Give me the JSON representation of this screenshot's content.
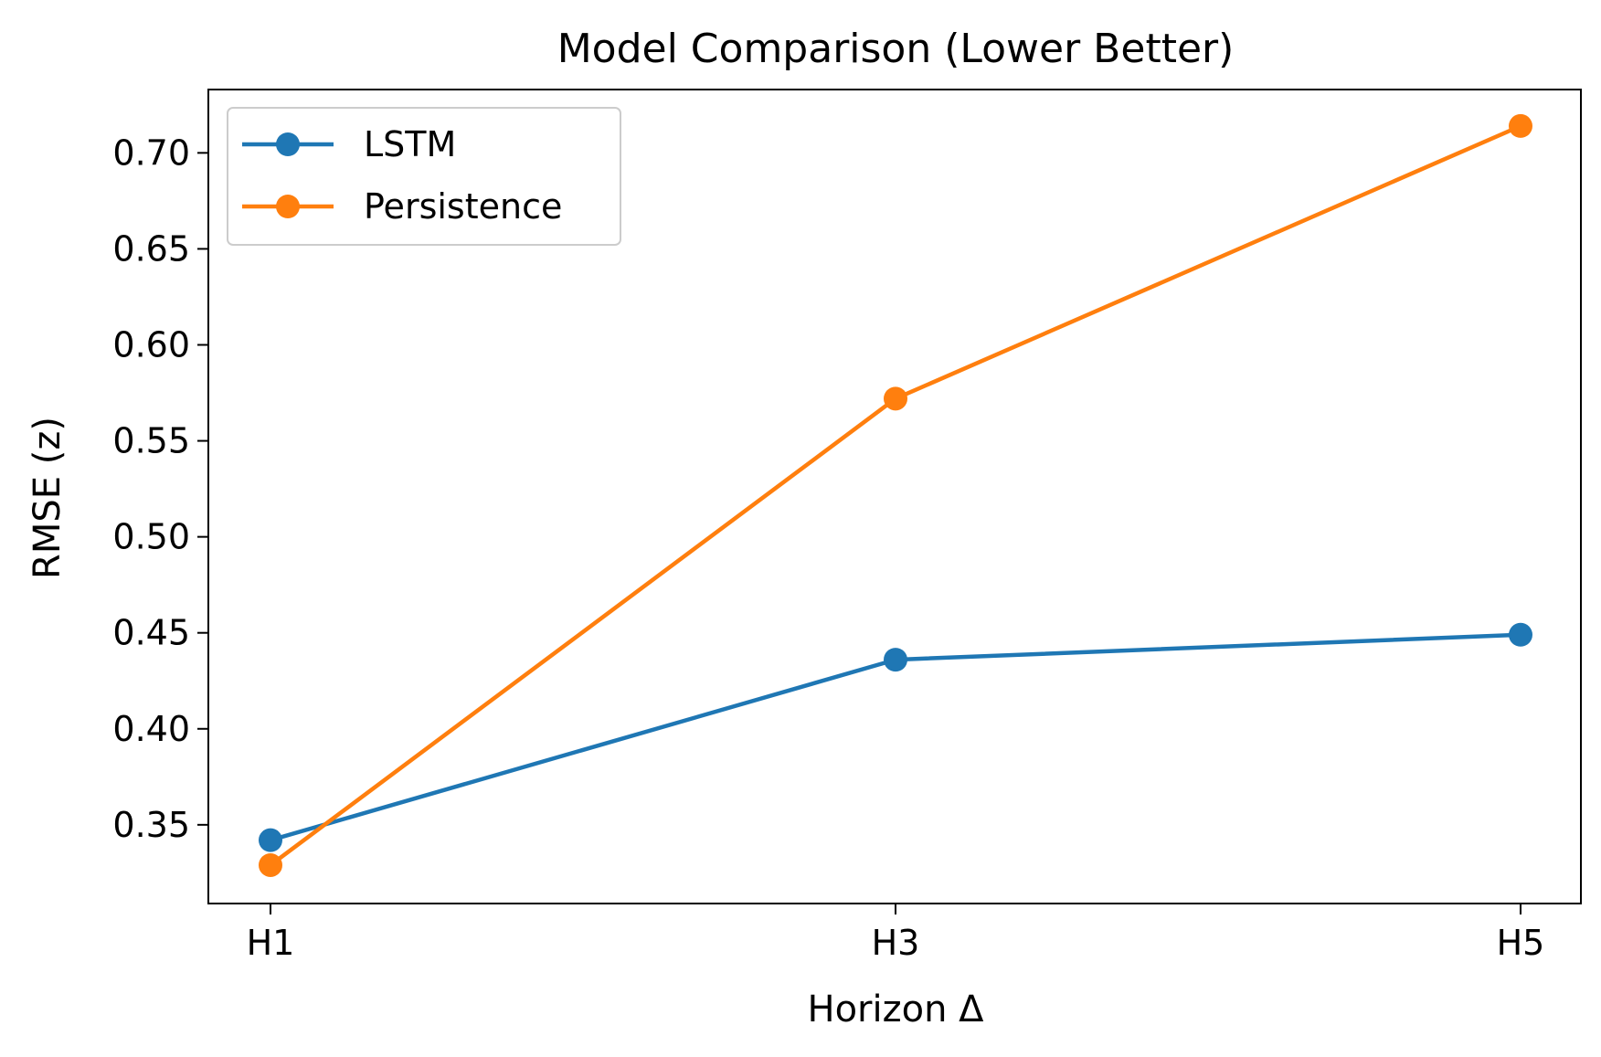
{
  "chart_data": {
    "type": "line",
    "title": "Model Comparison (Lower Better)",
    "xlabel": "Horizon Δ",
    "ylabel": "RMSE (z)",
    "categories": [
      "H1",
      "H3",
      "H5"
    ],
    "yticks": [
      "0.35",
      "0.40",
      "0.45",
      "0.50",
      "0.55",
      "0.60",
      "0.65",
      "0.70"
    ],
    "ylim": [
      0.309,
      0.733
    ],
    "grid": false,
    "legend_position": "top-left",
    "series": [
      {
        "name": "LSTM",
        "color": "#1f77b4",
        "values": [
          0.342,
          0.436,
          0.449
        ]
      },
      {
        "name": "Persistence",
        "color": "#ff7f0e",
        "values": [
          0.329,
          0.572,
          0.714
        ]
      }
    ]
  }
}
